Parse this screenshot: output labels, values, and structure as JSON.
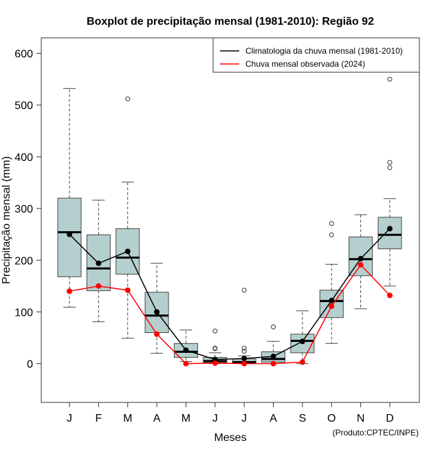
{
  "chart_data": {
    "type": "boxplot",
    "title": "Boxplot de precipitação mensal (1981-2010): Região 92",
    "xlabel": "Meses",
    "ylabel": "Precipitação mensal (mm)",
    "credit": "(Produto:CPTEC/INPE)",
    "ylim": [
      -75,
      630
    ],
    "yticks": [
      0,
      100,
      200,
      300,
      400,
      500,
      600
    ],
    "grid": false,
    "legend_position": "top-right",
    "categories": [
      "J",
      "F",
      "M",
      "A",
      "M",
      "J",
      "J",
      "A",
      "S",
      "O",
      "N",
      "D"
    ],
    "box_color": "#b5cfcf",
    "boxes": [
      {
        "low": 109,
        "q1": 168,
        "median": 254,
        "q3": 320,
        "high": 532,
        "outliers": []
      },
      {
        "low": 81,
        "q1": 141,
        "median": 184,
        "q3": 249,
        "high": 316,
        "outliers": []
      },
      {
        "low": 49,
        "q1": 173,
        "median": 205,
        "q3": 261,
        "high": 351,
        "outliers": [
          512
        ]
      },
      {
        "low": 20,
        "q1": 60,
        "median": 93,
        "q3": 138,
        "high": 194,
        "outliers": []
      },
      {
        "low": 4,
        "q1": 12,
        "median": 23,
        "q3": 39,
        "high": 65,
        "outliers": []
      },
      {
        "low": 0,
        "q1": 2,
        "median": 5,
        "q3": 12,
        "high": 21,
        "outliers": [
          63,
          30,
          29
        ]
      },
      {
        "low": 0,
        "q1": 1,
        "median": 3,
        "q3": 9,
        "high": 15,
        "outliers": [
          142,
          30,
          24
        ]
      },
      {
        "low": 0,
        "q1": 3,
        "median": 9,
        "q3": 23,
        "high": 43,
        "outliers": [
          71
        ]
      },
      {
        "low": 0,
        "q1": 21,
        "median": 44,
        "q3": 57,
        "high": 102,
        "outliers": []
      },
      {
        "low": 39,
        "q1": 89,
        "median": 121,
        "q3": 142,
        "high": 192,
        "outliers": [
          271,
          249
        ]
      },
      {
        "low": 106,
        "q1": 170,
        "median": 202,
        "q3": 245,
        "high": 288,
        "outliers": []
      },
      {
        "low": 150,
        "q1": 222,
        "median": 249,
        "q3": 283,
        "high": 319,
        "outliers": [
          550,
          389,
          379
        ]
      }
    ],
    "series": [
      {
        "name": "Climatologia da chuva mensal (1981-2010)",
        "color": "#000000",
        "values": [
          250,
          194,
          217,
          100,
          26,
          8,
          10,
          14,
          43,
          122,
          203,
          261
        ]
      },
      {
        "name": "Chuva mensal observada (2024)",
        "color": "#ff0000",
        "values": [
          140,
          150,
          142,
          57,
          0,
          1,
          0,
          0,
          3,
          111,
          191,
          132
        ]
      }
    ]
  }
}
